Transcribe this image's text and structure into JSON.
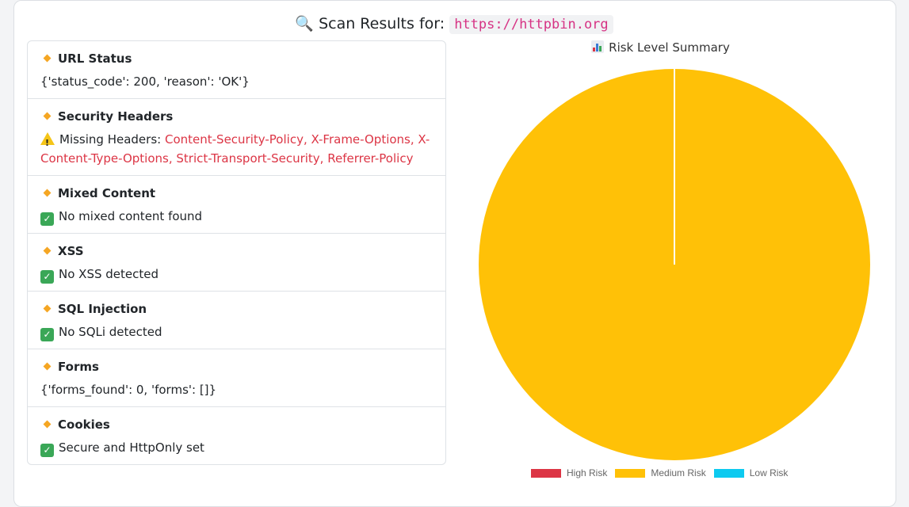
{
  "header": {
    "title_prefix": "Scan Results for:",
    "url": "https://httpbin.org",
    "icon": "magnifier-icon"
  },
  "results": [
    {
      "name": "URL Status",
      "type": "plain",
      "text": "{'status_code': 200, 'reason': 'OK'}"
    },
    {
      "name": "Security Headers",
      "type": "warning",
      "prefix": "Missing Headers:",
      "text": "Content-Security-Policy, X-Frame-Options, X-Content-Type-Options, Strict-Transport-Security, Referrer-Policy"
    },
    {
      "name": "Mixed Content",
      "type": "ok",
      "text": "No mixed content found"
    },
    {
      "name": "XSS",
      "type": "ok",
      "text": "No XSS detected"
    },
    {
      "name": "SQL Injection",
      "type": "ok",
      "text": "No SQLi detected"
    },
    {
      "name": "Forms",
      "type": "plain",
      "text": "{'forms_found': 0, 'forms': []}"
    },
    {
      "name": "Cookies",
      "type": "ok",
      "text": "Secure and HttpOnly set"
    }
  ],
  "chart_data": {
    "type": "pie",
    "title": "Risk Level Summary",
    "categories": [
      "High Risk",
      "Medium Risk",
      "Low Risk"
    ],
    "values": [
      0,
      1,
      0
    ],
    "colors": [
      "#dc3545",
      "#ffc107",
      "#0dcaf0"
    ],
    "legend": "bottom"
  }
}
